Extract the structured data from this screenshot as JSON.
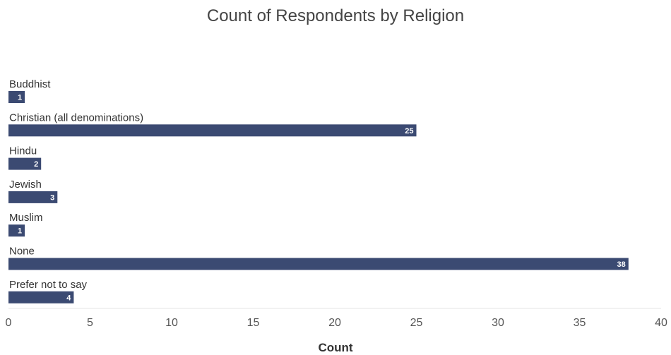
{
  "chart_data": {
    "type": "bar",
    "orientation": "horizontal",
    "title": "Count of Respondents by Religion",
    "xlabel": "Count",
    "ylabel": "",
    "categories": [
      "Buddhist",
      "Christian (all denominations)",
      "Hindu",
      "Jewish",
      "Muslim",
      "None",
      "Prefer not to say"
    ],
    "values": [
      1,
      25,
      2,
      3,
      1,
      38,
      4
    ],
    "xlim": [
      0,
      40
    ],
    "xticks": [
      0,
      5,
      10,
      15,
      20,
      25,
      30,
      35,
      40
    ],
    "grid": false,
    "legend": "none",
    "colors": {
      "bar": "#3b4a72",
      "bar_label": "#ffffff"
    }
  }
}
